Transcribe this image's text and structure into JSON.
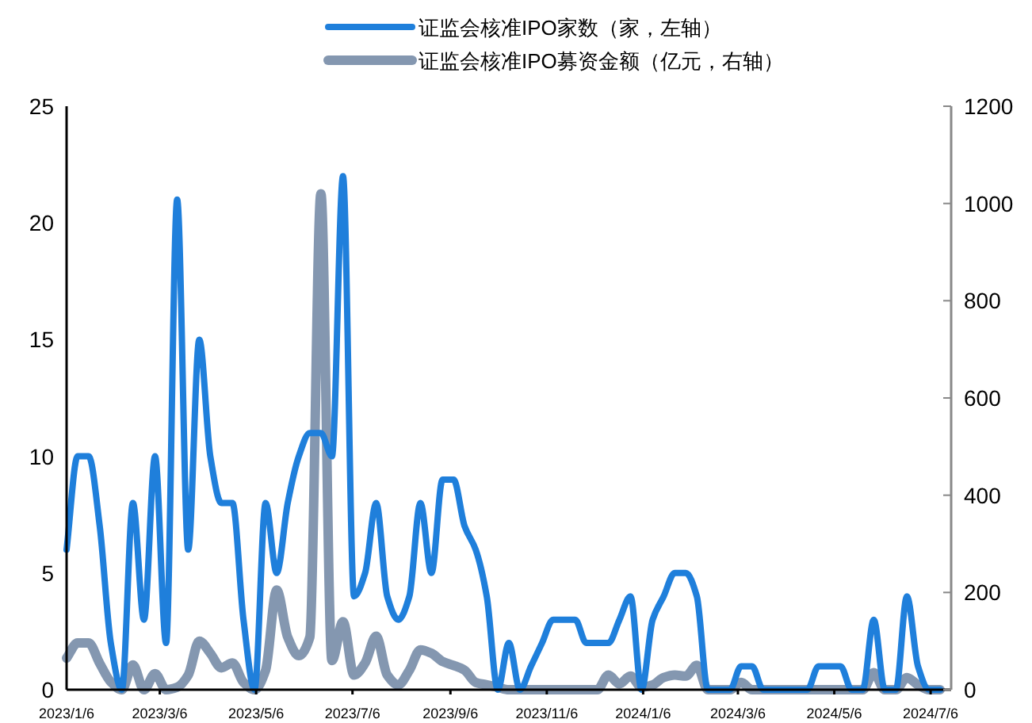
{
  "chart_data": {
    "type": "line",
    "legend": "top",
    "grid": false,
    "x": [
      "2023-01-06",
      "2023-01-13",
      "2023-01-20",
      "2023-01-27",
      "2023-02-03",
      "2023-02-10",
      "2023-02-17",
      "2023-02-24",
      "2023-03-03",
      "2023-03-10",
      "2023-03-17",
      "2023-03-24",
      "2023-03-31",
      "2023-04-07",
      "2023-04-14",
      "2023-04-21",
      "2023-04-28",
      "2023-05-05",
      "2023-05-12",
      "2023-05-19",
      "2023-05-26",
      "2023-06-02",
      "2023-06-09",
      "2023-06-16",
      "2023-06-23",
      "2023-06-30",
      "2023-07-07",
      "2023-07-14",
      "2023-07-21",
      "2023-07-28",
      "2023-08-04",
      "2023-08-11",
      "2023-08-18",
      "2023-08-25",
      "2023-09-01",
      "2023-09-08",
      "2023-09-15",
      "2023-09-22",
      "2023-09-29",
      "2023-10-06",
      "2023-10-13",
      "2023-10-20",
      "2023-10-27",
      "2023-11-03",
      "2023-11-10",
      "2023-11-17",
      "2023-11-24",
      "2023-12-01",
      "2023-12-08",
      "2023-12-15",
      "2023-12-22",
      "2023-12-29",
      "2024-01-05",
      "2024-01-12",
      "2024-01-19",
      "2024-01-26",
      "2024-02-02",
      "2024-02-09",
      "2024-02-16",
      "2024-02-23",
      "2024-03-01",
      "2024-03-08",
      "2024-03-15",
      "2024-03-22",
      "2024-03-29",
      "2024-04-05",
      "2024-04-12",
      "2024-04-19",
      "2024-04-26",
      "2024-05-03",
      "2024-05-10",
      "2024-05-17",
      "2024-05-24",
      "2024-05-31",
      "2024-06-07",
      "2024-06-14",
      "2024-06-21",
      "2024-06-28",
      "2024-07-05",
      "2024-07-12"
    ],
    "xlim": [
      "2023-01-06",
      "2024-07-19"
    ],
    "xticks": [
      {
        "value": "2023-01-06",
        "label": "2023/1/6"
      },
      {
        "value": "2023-03-06",
        "label": "2023/3/6"
      },
      {
        "value": "2023-05-06",
        "label": "2023/5/6"
      },
      {
        "value": "2023-07-06",
        "label": "2023/7/6"
      },
      {
        "value": "2023-09-06",
        "label": "2023/9/6"
      },
      {
        "value": "2023-11-06",
        "label": "2023/11/6"
      },
      {
        "value": "2024-01-06",
        "label": "2024/1/6"
      },
      {
        "value": "2024-03-06",
        "label": "2024/3/6"
      },
      {
        "value": "2024-05-06",
        "label": "2024/5/6"
      },
      {
        "value": "2024-07-06",
        "label": "2024/7/6"
      }
    ],
    "ylim": [
      0,
      25
    ],
    "yticks": [
      0,
      5,
      10,
      15,
      20,
      25
    ],
    "y2lim": [
      0,
      1200
    ],
    "y2ticks": [
      0,
      200,
      400,
      600,
      800,
      1000,
      1200
    ],
    "series": [
      {
        "name": "证监会核准IPO家数（家，左轴）",
        "color": "#1f7fdb",
        "values": [
          6,
          10,
          10,
          7,
          2,
          0,
          8,
          3,
          10,
          2,
          21,
          6,
          15,
          10,
          8,
          8,
          3,
          0,
          8,
          5,
          8,
          10,
          11,
          11,
          10,
          22,
          4,
          5,
          8,
          4,
          3,
          4,
          8,
          5,
          9,
          9,
          7,
          6,
          4,
          0,
          2,
          0,
          1,
          2,
          3,
          3,
          3,
          2,
          2,
          2,
          3,
          4,
          0,
          3,
          4,
          5,
          5,
          4,
          0,
          0,
          0,
          1,
          1,
          0,
          0,
          0,
          0,
          0,
          1,
          1,
          1,
          0,
          0,
          3,
          0,
          0,
          4,
          1,
          0,
          0
        ]
      },
      {
        "name": "证监会核准IPO募资金额（亿元，右轴）",
        "color": "#8497b0",
        "axis": "y2",
        "values": [
          65,
          96,
          96,
          54,
          16,
          0,
          51,
          0,
          33,
          0,
          5,
          30,
          100,
          75,
          45,
          55,
          15,
          0,
          40,
          205,
          108,
          70,
          108,
          1020,
          60,
          140,
          30,
          55,
          110,
          30,
          10,
          40,
          82,
          75,
          58,
          50,
          40,
          15,
          10,
          5,
          0,
          0,
          0,
          0,
          0,
          0,
          0,
          0,
          0,
          30,
          12,
          28,
          5,
          10,
          25,
          30,
          28,
          50,
          0,
          0,
          0,
          15,
          0,
          0,
          0,
          0,
          0,
          0,
          0,
          0,
          0,
          0,
          0,
          35,
          0,
          0,
          25,
          10,
          0,
          0
        ]
      }
    ]
  }
}
